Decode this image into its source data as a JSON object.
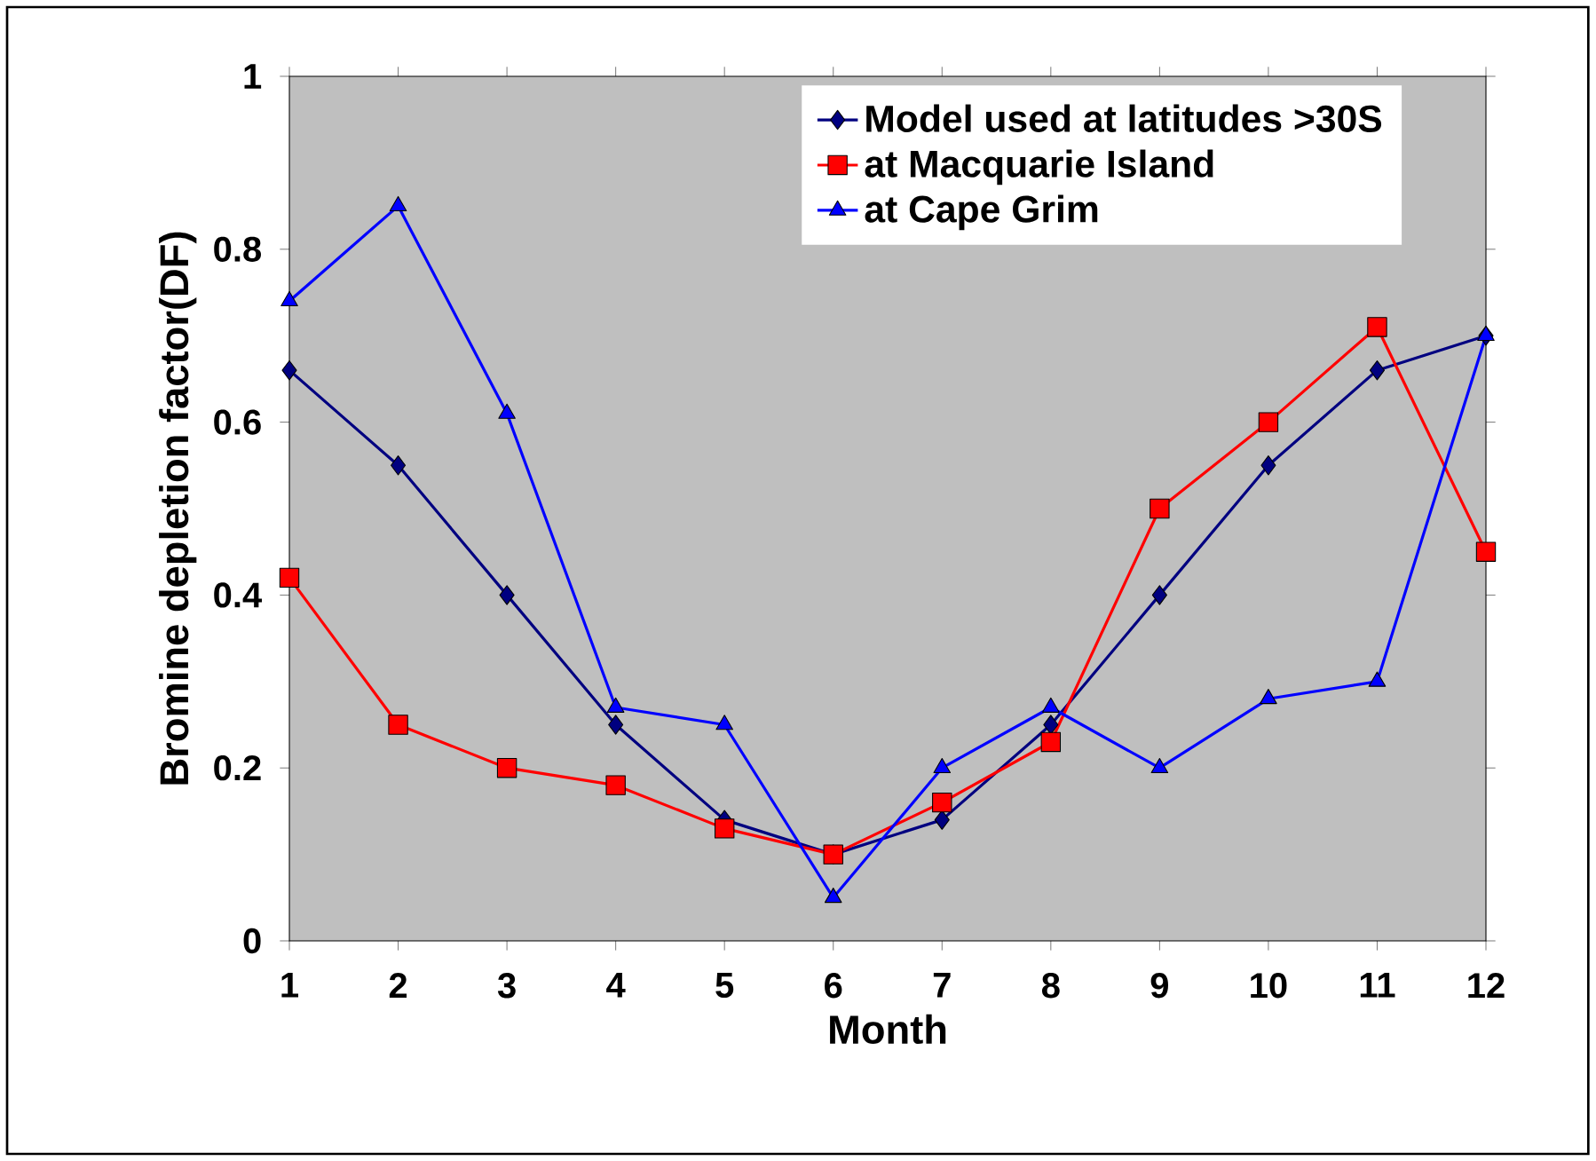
{
  "chart_data": {
    "type": "line",
    "xlabel": "Month",
    "ylabel": "Bromine depletion factor(DF)",
    "x": [
      1,
      2,
      3,
      4,
      5,
      6,
      7,
      8,
      9,
      10,
      11,
      12
    ],
    "series": [
      {
        "name": "Model used at latitudes >30S",
        "color": "#000080",
        "marker": "diamond",
        "values": [
          0.66,
          0.55,
          0.4,
          0.25,
          0.14,
          0.1,
          0.14,
          0.25,
          0.4,
          0.55,
          0.66,
          0.7
        ]
      },
      {
        "name": "at Macquarie Island",
        "color": "#ff0000",
        "marker": "square",
        "values": [
          0.42,
          0.25,
          0.2,
          0.18,
          0.13,
          0.1,
          0.16,
          0.23,
          0.5,
          0.6,
          0.71,
          0.45
        ]
      },
      {
        "name": "at Cape Grim",
        "color": "#0000ff",
        "marker": "triangle",
        "values": [
          0.74,
          0.85,
          0.61,
          0.27,
          0.25,
          0.05,
          0.2,
          0.27,
          0.2,
          0.28,
          0.3,
          0.7
        ]
      }
    ],
    "xlim": [
      1,
      12
    ],
    "ylim": [
      0,
      1
    ],
    "xticks": [
      1,
      2,
      3,
      4,
      5,
      6,
      7,
      8,
      9,
      10,
      11,
      12
    ],
    "yticks": [
      0,
      0.2,
      0.4,
      0.6,
      0.8,
      1
    ],
    "grid": false,
    "legend": "top right",
    "line_style": "solid"
  }
}
